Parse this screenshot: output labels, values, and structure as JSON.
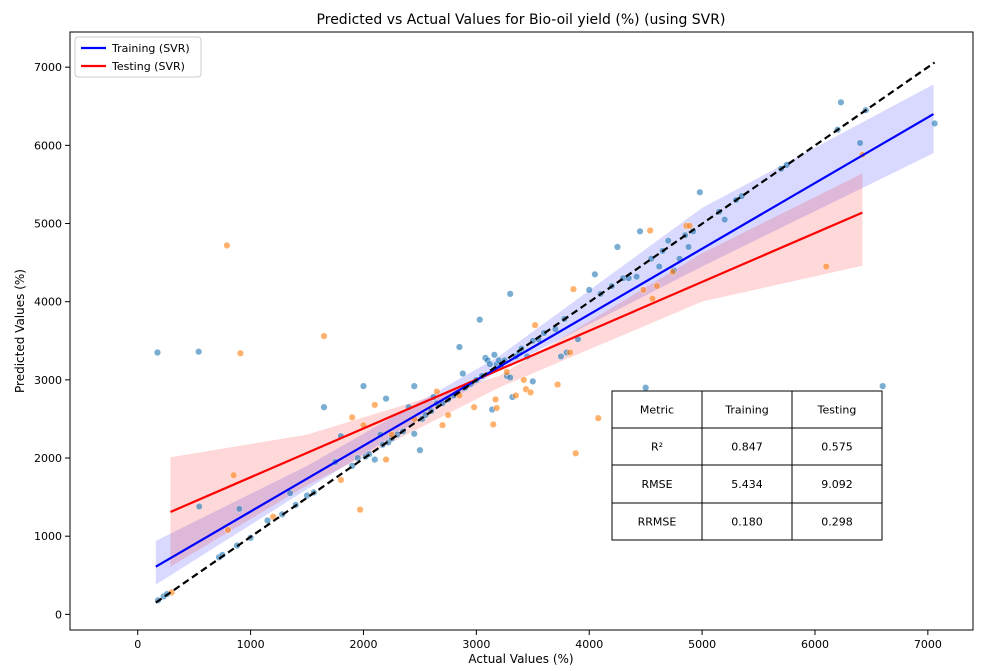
{
  "chart_data": {
    "type": "scatter",
    "title": "Predicted vs Actual Values for Bio-oil yield (%) (using SVR)",
    "xlabel": "Actual Values (%)",
    "ylabel": "Predicted Values (%)",
    "xlim": [
      -600,
      7400
    ],
    "ylim": [
      -200,
      7450
    ],
    "xticks": [
      0,
      1000,
      2000,
      3000,
      4000,
      5000,
      6000,
      7000
    ],
    "yticks": [
      0,
      1000,
      2000,
      3000,
      4000,
      5000,
      6000,
      7000
    ],
    "grid": false,
    "legend": {
      "placement": "top-left",
      "entries": [
        {
          "name": "Training (SVR)",
          "color": "#0000ff"
        },
        {
          "name": "Testing (SVR)",
          "color": "#ff0000"
        }
      ]
    },
    "colors": {
      "train_points": "#1f77b4",
      "test_points": "#ff7f0e",
      "train_line": "#0000ff",
      "test_line": "#ff0000",
      "train_band": "#0000ff",
      "test_band": "#ff0000",
      "ideal_line": "#000000"
    },
    "ideal_line": {
      "x": [
        160,
        7060
      ],
      "y": [
        150,
        7060
      ]
    },
    "series": [
      {
        "name": "Training (SVR)",
        "fit_line": {
          "x": [
            160,
            7050
          ],
          "y": [
            610,
            6400
          ]
        },
        "band_upper": [
          [
            160,
            940
          ],
          [
            1500,
            1900
          ],
          [
            3200,
            3300
          ],
          [
            5000,
            5200
          ],
          [
            7050,
            6780
          ]
        ],
        "band_lower": [
          [
            160,
            380
          ],
          [
            1500,
            1600
          ],
          [
            3200,
            3120
          ],
          [
            5000,
            4450
          ],
          [
            7050,
            5900
          ]
        ],
        "points": [
          [
            175,
            3350
          ],
          [
            180,
            180
          ],
          [
            230,
            230
          ],
          [
            260,
            260
          ],
          [
            540,
            3360
          ],
          [
            545,
            1380
          ],
          [
            720,
            730
          ],
          [
            750,
            760
          ],
          [
            880,
            880
          ],
          [
            900,
            1350
          ],
          [
            1000,
            980
          ],
          [
            1150,
            1200
          ],
          [
            1280,
            1280
          ],
          [
            1350,
            1550
          ],
          [
            1400,
            1400
          ],
          [
            1500,
            1520
          ],
          [
            1560,
            1560
          ],
          [
            1650,
            2650
          ],
          [
            1750,
            1950
          ],
          [
            1800,
            2280
          ],
          [
            1900,
            1900
          ],
          [
            1950,
            2000
          ],
          [
            2000,
            2920
          ],
          [
            2020,
            2020
          ],
          [
            2050,
            2050
          ],
          [
            2100,
            1980
          ],
          [
            2150,
            2300
          ],
          [
            2170,
            2170
          ],
          [
            2200,
            2760
          ],
          [
            2220,
            2200
          ],
          [
            2250,
            2250
          ],
          [
            2300,
            2300
          ],
          [
            2350,
            2340
          ],
          [
            2400,
            2650
          ],
          [
            2450,
            2920
          ],
          [
            2450,
            2310
          ],
          [
            2500,
            2100
          ],
          [
            2520,
            2500
          ],
          [
            2550,
            2550
          ],
          [
            2600,
            2600
          ],
          [
            2620,
            2780
          ],
          [
            2650,
            2700
          ],
          [
            2700,
            2700
          ],
          [
            2750,
            2750
          ],
          [
            2800,
            2800
          ],
          [
            2850,
            3420
          ],
          [
            2880,
            3080
          ],
          [
            2900,
            2900
          ],
          [
            2950,
            2950
          ],
          [
            3000,
            3000
          ],
          [
            3030,
            3770
          ],
          [
            3050,
            3050
          ],
          [
            3080,
            3280
          ],
          [
            3100,
            3250
          ],
          [
            3120,
            3200
          ],
          [
            3140,
            2620
          ],
          [
            3160,
            3320
          ],
          [
            3180,
            3200
          ],
          [
            3200,
            3250
          ],
          [
            3220,
            3180
          ],
          [
            3250,
            3250
          ],
          [
            3270,
            3050
          ],
          [
            3300,
            4100
          ],
          [
            3300,
            3030
          ],
          [
            3320,
            2780
          ],
          [
            3350,
            3300
          ],
          [
            3380,
            3350
          ],
          [
            3400,
            3400
          ],
          [
            3450,
            3300
          ],
          [
            3500,
            2980
          ],
          [
            3500,
            3500
          ],
          [
            3550,
            3520
          ],
          [
            3600,
            3600
          ],
          [
            3700,
            3650
          ],
          [
            3750,
            3300
          ],
          [
            3780,
            3780
          ],
          [
            3800,
            3350
          ],
          [
            3900,
            3520
          ],
          [
            4000,
            4150
          ],
          [
            4050,
            4350
          ],
          [
            4100,
            4100
          ],
          [
            4200,
            4200
          ],
          [
            4250,
            4700
          ],
          [
            4300,
            4300
          ],
          [
            4350,
            4300
          ],
          [
            4420,
            4320
          ],
          [
            4450,
            4900
          ],
          [
            4500,
            2900
          ],
          [
            4550,
            4550
          ],
          [
            4620,
            4450
          ],
          [
            4650,
            4650
          ],
          [
            4700,
            4780
          ],
          [
            4750,
            4400
          ],
          [
            4800,
            4550
          ],
          [
            4850,
            4850
          ],
          [
            4880,
            4700
          ],
          [
            4920,
            4900
          ],
          [
            4980,
            5400
          ],
          [
            5150,
            5150
          ],
          [
            5200,
            5050
          ],
          [
            5300,
            5300
          ],
          [
            5350,
            5350
          ],
          [
            5700,
            5700
          ],
          [
            5750,
            5750
          ],
          [
            6200,
            6200
          ],
          [
            6230,
            6550
          ],
          [
            6400,
            6030
          ],
          [
            6450,
            6450
          ],
          [
            6600,
            2920
          ],
          [
            7060,
            6280
          ]
        ]
      },
      {
        "name": "Testing (SVR)",
        "fit_line": {
          "x": [
            290,
            6420
          ],
          "y": [
            1310,
            5140
          ]
        },
        "band_upper": [
          [
            290,
            2010
          ],
          [
            1500,
            2300
          ],
          [
            3200,
            3050
          ],
          [
            5000,
            4620
          ],
          [
            6420,
            5640
          ]
        ],
        "band_lower": [
          [
            290,
            610
          ],
          [
            1500,
            1650
          ],
          [
            3200,
            2900
          ],
          [
            5000,
            4000
          ],
          [
            6420,
            4460
          ]
        ],
        "points": [
          [
            300,
            280
          ],
          [
            790,
            4720
          ],
          [
            800,
            1080
          ],
          [
            850,
            1780
          ],
          [
            910,
            3340
          ],
          [
            1200,
            1250
          ],
          [
            1650,
            3560
          ],
          [
            1800,
            1720
          ],
          [
            1900,
            2520
          ],
          [
            1970,
            1340
          ],
          [
            2000,
            2420
          ],
          [
            2100,
            2680
          ],
          [
            2200,
            1980
          ],
          [
            2250,
            2300
          ],
          [
            2450,
            2500
          ],
          [
            2650,
            2850
          ],
          [
            2700,
            2420
          ],
          [
            2750,
            2550
          ],
          [
            2850,
            2800
          ],
          [
            2980,
            2650
          ],
          [
            3150,
            2430
          ],
          [
            3170,
            2750
          ],
          [
            3180,
            2640
          ],
          [
            3270,
            3100
          ],
          [
            3350,
            2800
          ],
          [
            3420,
            3000
          ],
          [
            3440,
            2880
          ],
          [
            3480,
            2840
          ],
          [
            3520,
            3700
          ],
          [
            3720,
            2940
          ],
          [
            3830,
            3350
          ],
          [
            3860,
            4160
          ],
          [
            3880,
            2060
          ],
          [
            4080,
            2510
          ],
          [
            4480,
            4150
          ],
          [
            4540,
            4910
          ],
          [
            4560,
            4040
          ],
          [
            4600,
            4200
          ],
          [
            4740,
            4380
          ],
          [
            4860,
            4970
          ],
          [
            4890,
            4970
          ],
          [
            6100,
            4450
          ],
          [
            6420,
            5880
          ]
        ]
      }
    ],
    "table": {
      "headers": [
        "Metric",
        "Training",
        "Testing"
      ],
      "rows": [
        [
          "R²",
          "0.847",
          "0.575"
        ],
        [
          "RMSE",
          "5.434",
          "9.092"
        ],
        [
          "RRMSE",
          "0.180",
          "0.298"
        ]
      ]
    }
  }
}
